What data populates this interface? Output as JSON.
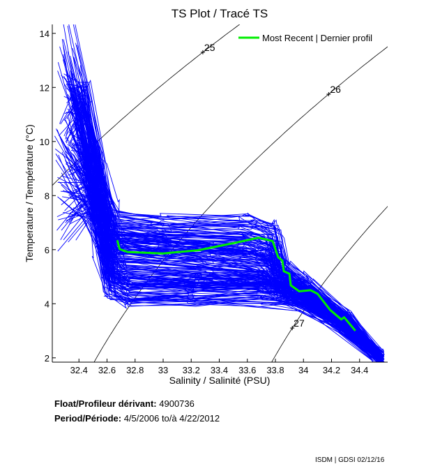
{
  "chart_data": {
    "type": "line",
    "title": "TS Plot / Tracé TS",
    "xlabel": "Salinity / Salinité (PSU)",
    "ylabel": "Temperature / Température (°C)",
    "xlim": [
      32.21,
      34.6
    ],
    "ylim": [
      1.84,
      14.33
    ],
    "xticks": [
      "32.4",
      "32.6",
      "32.8",
      "33",
      "33.2",
      "33.4",
      "33.6",
      "33.8",
      "34",
      "34.2",
      "34.4"
    ],
    "yticks": [
      "2",
      "4",
      "6",
      "8",
      "10",
      "12",
      "14"
    ],
    "grid": false,
    "legend": {
      "placement": "top-right",
      "label": "Most Recent | Dernier profil"
    },
    "density_contours": [
      {
        "label": "25",
        "level": 25,
        "label_T": 13.3
      },
      {
        "label": "26",
        "level": 26,
        "label_T": 11.75
      },
      {
        "label": "27",
        "level": 27,
        "label_T": 3.1
      }
    ],
    "most_recent_profile": {
      "color": "#00ee00",
      "S": [
        32.673,
        32.69,
        32.75,
        33.0,
        33.25,
        33.5,
        33.68,
        33.78,
        33.82,
        33.85,
        33.86,
        33.9,
        33.91,
        33.97,
        34.05,
        34.1,
        34.19,
        34.27,
        34.29,
        34.37
      ],
      "T": [
        6.35,
        6.02,
        5.91,
        5.86,
        5.98,
        6.24,
        6.44,
        6.32,
        5.72,
        5.59,
        5.2,
        5.11,
        4.68,
        4.46,
        4.5,
        4.37,
        3.77,
        3.42,
        3.5,
        3.0
      ]
    },
    "all_profiles": {
      "color": "#0000ff",
      "count_drawn": 220,
      "envelope_templates": [
        {
          "S": [
            32.33,
            32.42,
            32.52,
            32.6,
            32.64,
            33.0,
            33.6,
            33.78,
            33.84,
            34.0,
            34.3,
            34.55
          ],
          "T": [
            14.2,
            11.5,
            8.8,
            7.2,
            6.6,
            6.5,
            6.45,
            6.2,
            5.0,
            4.5,
            3.4,
            2.0
          ]
        },
        {
          "S": [
            32.38,
            32.5,
            32.58,
            32.62,
            32.75,
            33.2,
            33.7,
            34.0,
            34.3,
            34.55
          ],
          "T": [
            12.5,
            9.0,
            6.5,
            4.8,
            4.5,
            4.5,
            4.5,
            4.3,
            3.3,
            2.0
          ]
        },
        {
          "S": [
            32.3,
            32.48,
            32.6,
            32.68,
            33.3,
            33.72,
            33.88,
            34.15,
            34.5
          ],
          "T": [
            10.5,
            8.0,
            6.4,
            5.9,
            5.6,
            5.3,
            4.7,
            3.8,
            2.2
          ]
        }
      ]
    }
  },
  "footer": {
    "float_label": "Float/Profileur dérivant:",
    "float_value": "4900736",
    "period_label": "Period/Période:",
    "period_start": "4/5/2006",
    "period_sep": "to/à",
    "period_end": "4/22/2012",
    "credit": "ISDM | GDSI 02/12/16"
  }
}
